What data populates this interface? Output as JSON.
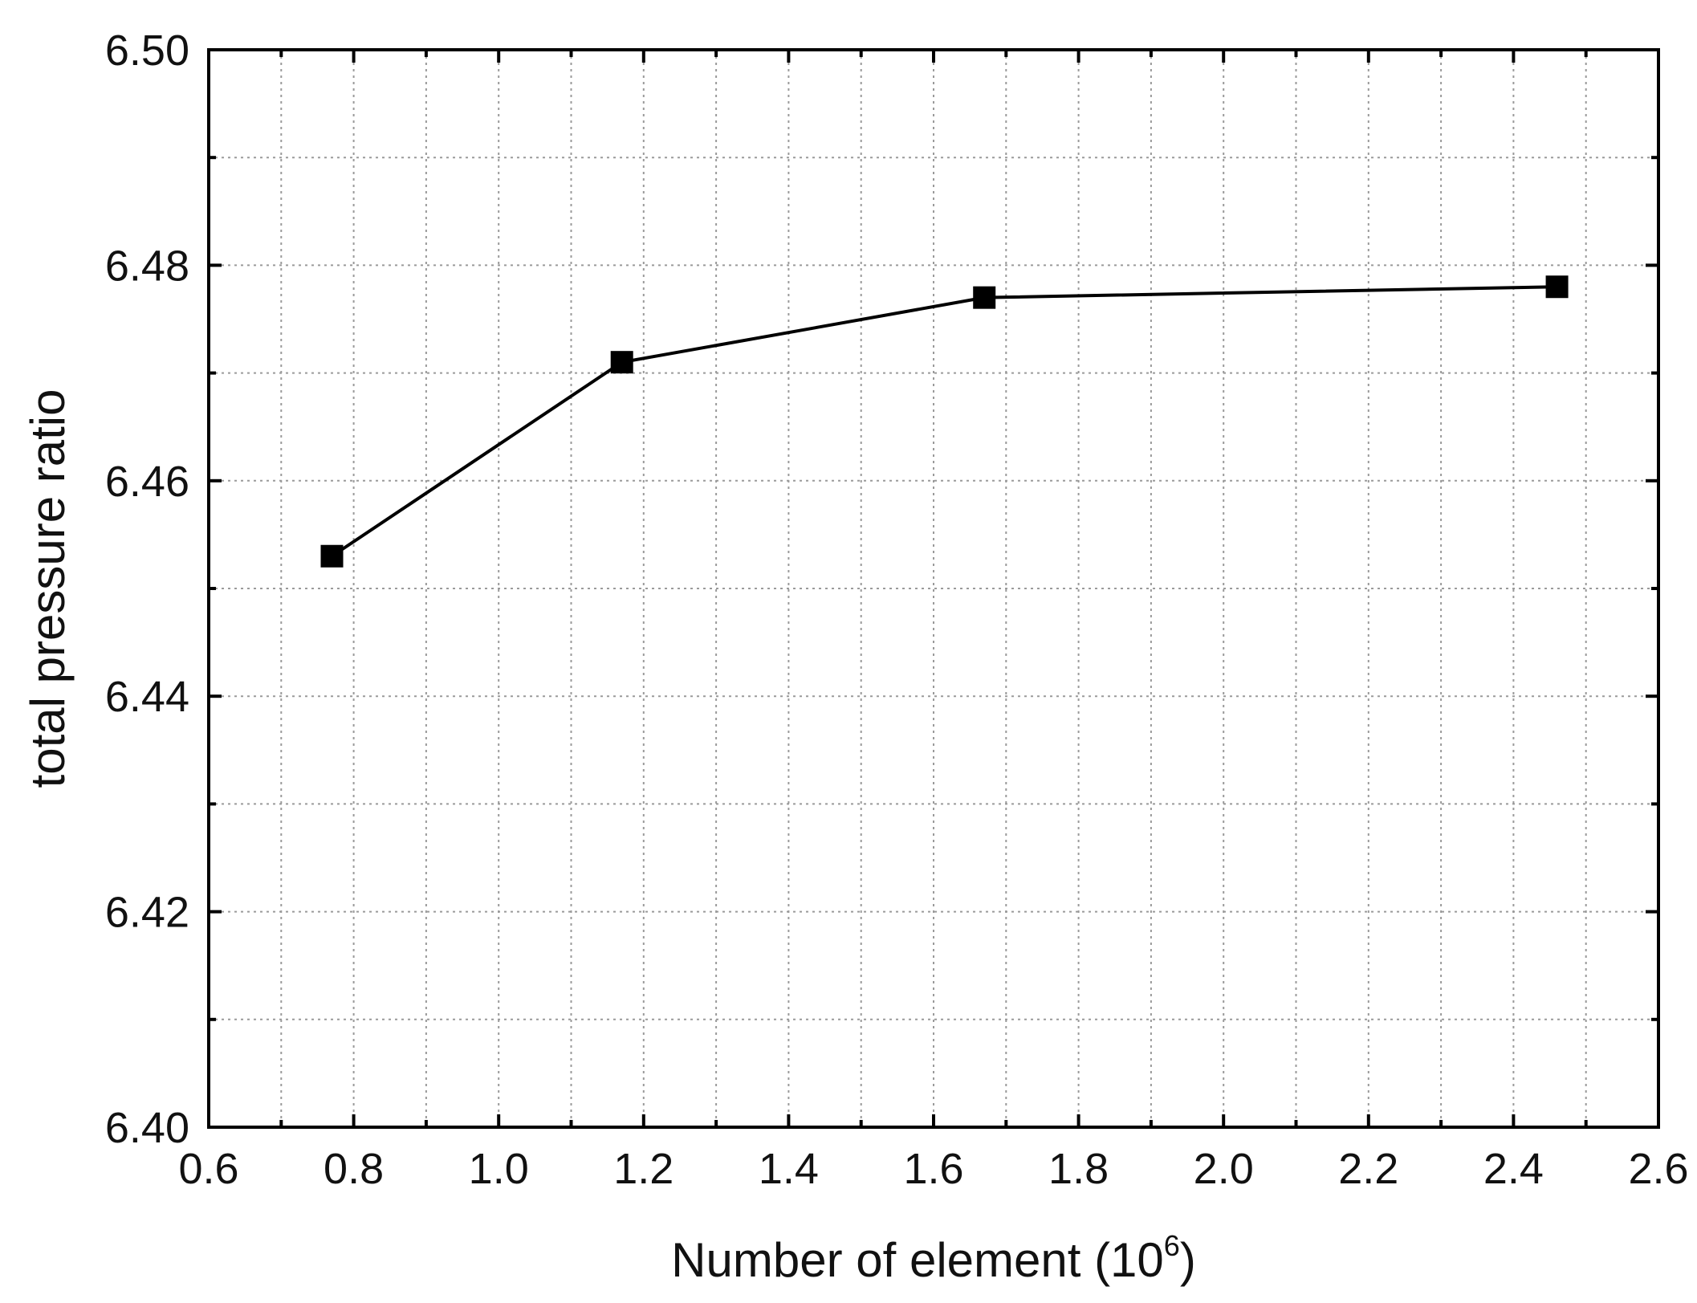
{
  "chart_data": {
    "type": "line",
    "xlabel": "Number of element (10",
    "xlabel_superscript": "6",
    "xlabel_suffix": ")",
    "ylabel": "total pressure ratio",
    "xlim": [
      0.6,
      2.6
    ],
    "ylim": [
      6.4,
      6.5
    ],
    "x_major_ticks": [
      0.6,
      0.8,
      1.0,
      1.2,
      1.4,
      1.6,
      1.8,
      2.0,
      2.2,
      2.4,
      2.6
    ],
    "x_tick_labels": [
      "0.6",
      "0.8",
      "1.0",
      "1.2",
      "1.4",
      "1.6",
      "1.8",
      "2.0",
      "2.2",
      "2.4",
      "2.6"
    ],
    "x_minor_ticks": [
      0.7,
      0.9,
      1.1,
      1.3,
      1.5,
      1.7,
      1.9,
      2.1,
      2.3,
      2.5
    ],
    "y_major_ticks": [
      6.4,
      6.42,
      6.44,
      6.46,
      6.48,
      6.5
    ],
    "y_tick_labels": [
      "6.40",
      "6.42",
      "6.44",
      "6.46",
      "6.48",
      "6.50"
    ],
    "y_minor_ticks": [
      6.41,
      6.43,
      6.45,
      6.47,
      6.49
    ],
    "grid": true,
    "marker": "square",
    "line_color": "#000000",
    "series": [
      {
        "x": [
          0.77,
          1.17,
          1.67,
          2.46
        ],
        "y": [
          6.453,
          6.471,
          6.477,
          6.478
        ]
      }
    ]
  }
}
